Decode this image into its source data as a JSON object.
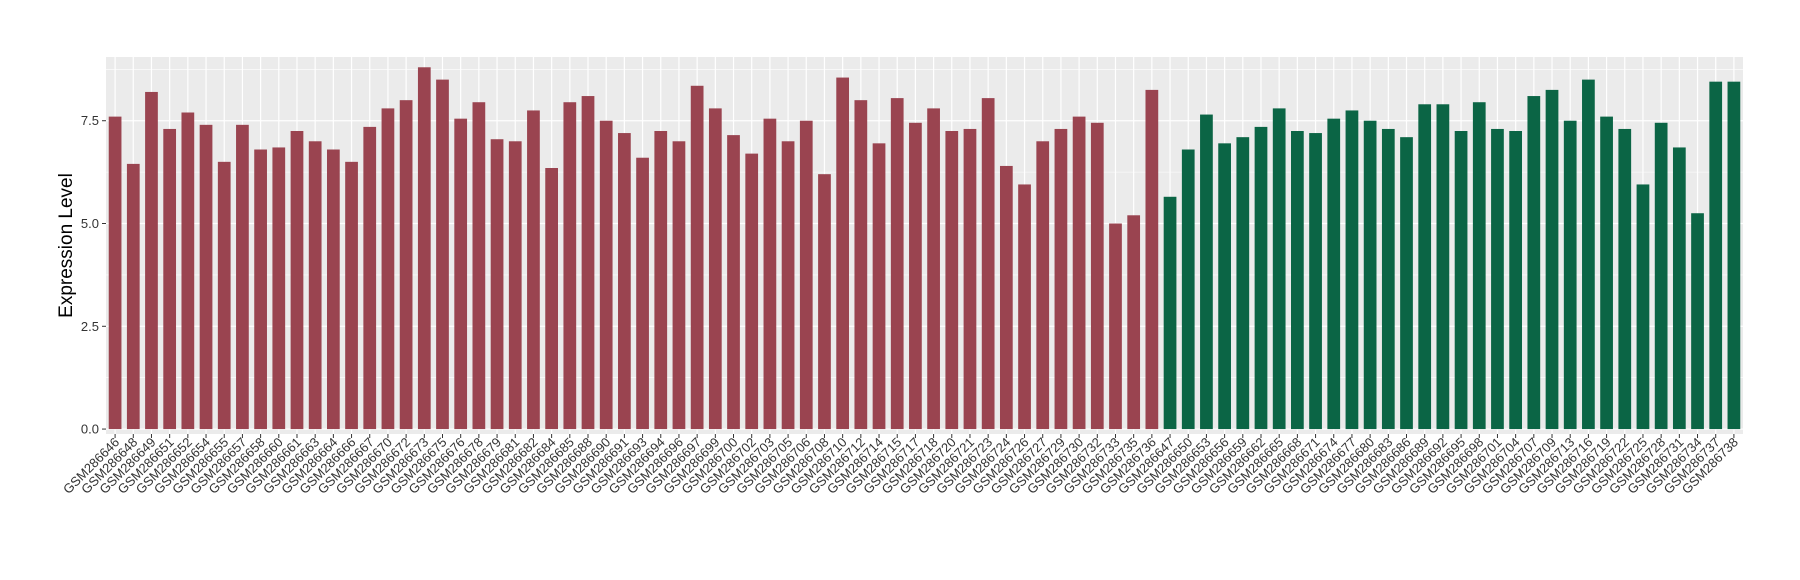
{
  "chart_data": {
    "type": "bar",
    "title": "",
    "xlabel": "",
    "ylabel": "Expression Level",
    "ylim": [
      -0.12,
      9.05
    ],
    "yticks": [
      "0.0",
      "2.5",
      "5.0",
      "7.5"
    ],
    "ytick_values": [
      0,
      2.5,
      5.0,
      7.5
    ],
    "grid": true,
    "legend": "none",
    "colors": {
      "group1": "#9A4450",
      "group2": "#0B6545",
      "panel": "#EBEBEB",
      "grid": "#FFFFFF"
    },
    "categories": [
      "GSM286646",
      "GSM286648",
      "GSM286649",
      "GSM286651",
      "GSM286652",
      "GSM286654",
      "GSM286655",
      "GSM286657",
      "GSM286658",
      "GSM286660",
      "GSM286661",
      "GSM286663",
      "GSM286664",
      "GSM286666",
      "GSM286667",
      "GSM286670",
      "GSM286672",
      "GSM286673",
      "GSM286675",
      "GSM286676",
      "GSM286678",
      "GSM286679",
      "GSM286681",
      "GSM286682",
      "GSM286684",
      "GSM286685",
      "GSM286688",
      "GSM286690",
      "GSM286691",
      "GSM286693",
      "GSM286694",
      "GSM286696",
      "GSM286697",
      "GSM286699",
      "GSM286700",
      "GSM286702",
      "GSM286703",
      "GSM286705",
      "GSM286706",
      "GSM286708",
      "GSM286710",
      "GSM286712",
      "GSM286714",
      "GSM286715",
      "GSM286717",
      "GSM286718",
      "GSM286720",
      "GSM286721",
      "GSM286723",
      "GSM286724",
      "GSM286726",
      "GSM286727",
      "GSM286729",
      "GSM286730",
      "GSM286732",
      "GSM286733",
      "GSM286735",
      "GSM286736",
      "GSM286647",
      "GSM286650",
      "GSM286653",
      "GSM286656",
      "GSM286659",
      "GSM286662",
      "GSM286665",
      "GSM286668",
      "GSM286671",
      "GSM286674",
      "GSM286677",
      "GSM286680",
      "GSM286683",
      "GSM286686",
      "GSM286689",
      "GSM286692",
      "GSM286695",
      "GSM286698",
      "GSM286701",
      "GSM286704",
      "GSM286707",
      "GSM286709",
      "GSM286713",
      "GSM286716",
      "GSM286719",
      "GSM286722",
      "GSM286725",
      "GSM286728",
      "GSM286731",
      "GSM286734",
      "GSM286737",
      "GSM286738"
    ],
    "values": [
      7.6,
      6.45,
      8.2,
      7.3,
      7.7,
      7.4,
      6.5,
      7.4,
      6.8,
      6.85,
      7.25,
      7.0,
      6.8,
      6.5,
      7.35,
      7.8,
      8.0,
      8.8,
      8.5,
      7.55,
      7.95,
      7.05,
      7.0,
      7.75,
      6.35,
      7.95,
      8.1,
      7.5,
      7.2,
      6.6,
      7.25,
      7.0,
      8.35,
      7.8,
      7.15,
      6.7,
      7.55,
      7.0,
      7.5,
      6.2,
      8.55,
      8.0,
      6.95,
      8.05,
      7.45,
      7.8,
      7.25,
      7.3,
      8.05,
      6.4,
      5.95,
      7.0,
      7.3,
      7.6,
      7.45,
      5.0,
      5.2,
      8.25,
      5.65,
      6.8,
      7.65,
      6.95,
      7.1,
      7.35,
      7.8,
      7.25,
      7.2,
      7.55,
      7.75,
      7.5,
      7.3,
      7.1,
      7.9,
      7.9,
      7.25,
      7.95,
      7.3,
      7.25,
      8.1,
      8.25,
      7.5,
      8.5,
      7.6,
      7.3,
      5.95,
      7.45,
      6.85,
      5.25,
      8.45,
      8.45
    ],
    "groups": [
      1,
      1,
      1,
      1,
      1,
      1,
      1,
      1,
      1,
      1,
      1,
      1,
      1,
      1,
      1,
      1,
      1,
      1,
      1,
      1,
      1,
      1,
      1,
      1,
      1,
      1,
      1,
      1,
      1,
      1,
      1,
      1,
      1,
      1,
      1,
      1,
      1,
      1,
      1,
      1,
      1,
      1,
      1,
      1,
      1,
      1,
      1,
      1,
      1,
      1,
      1,
      1,
      1,
      1,
      1,
      1,
      1,
      1,
      2,
      2,
      2,
      2,
      2,
      2,
      2,
      2,
      2,
      2,
      2,
      2,
      2,
      2,
      2,
      2,
      2,
      2,
      2,
      2,
      2,
      2,
      2,
      2,
      2,
      2,
      2,
      2,
      2,
      2,
      2,
      2
    ]
  }
}
